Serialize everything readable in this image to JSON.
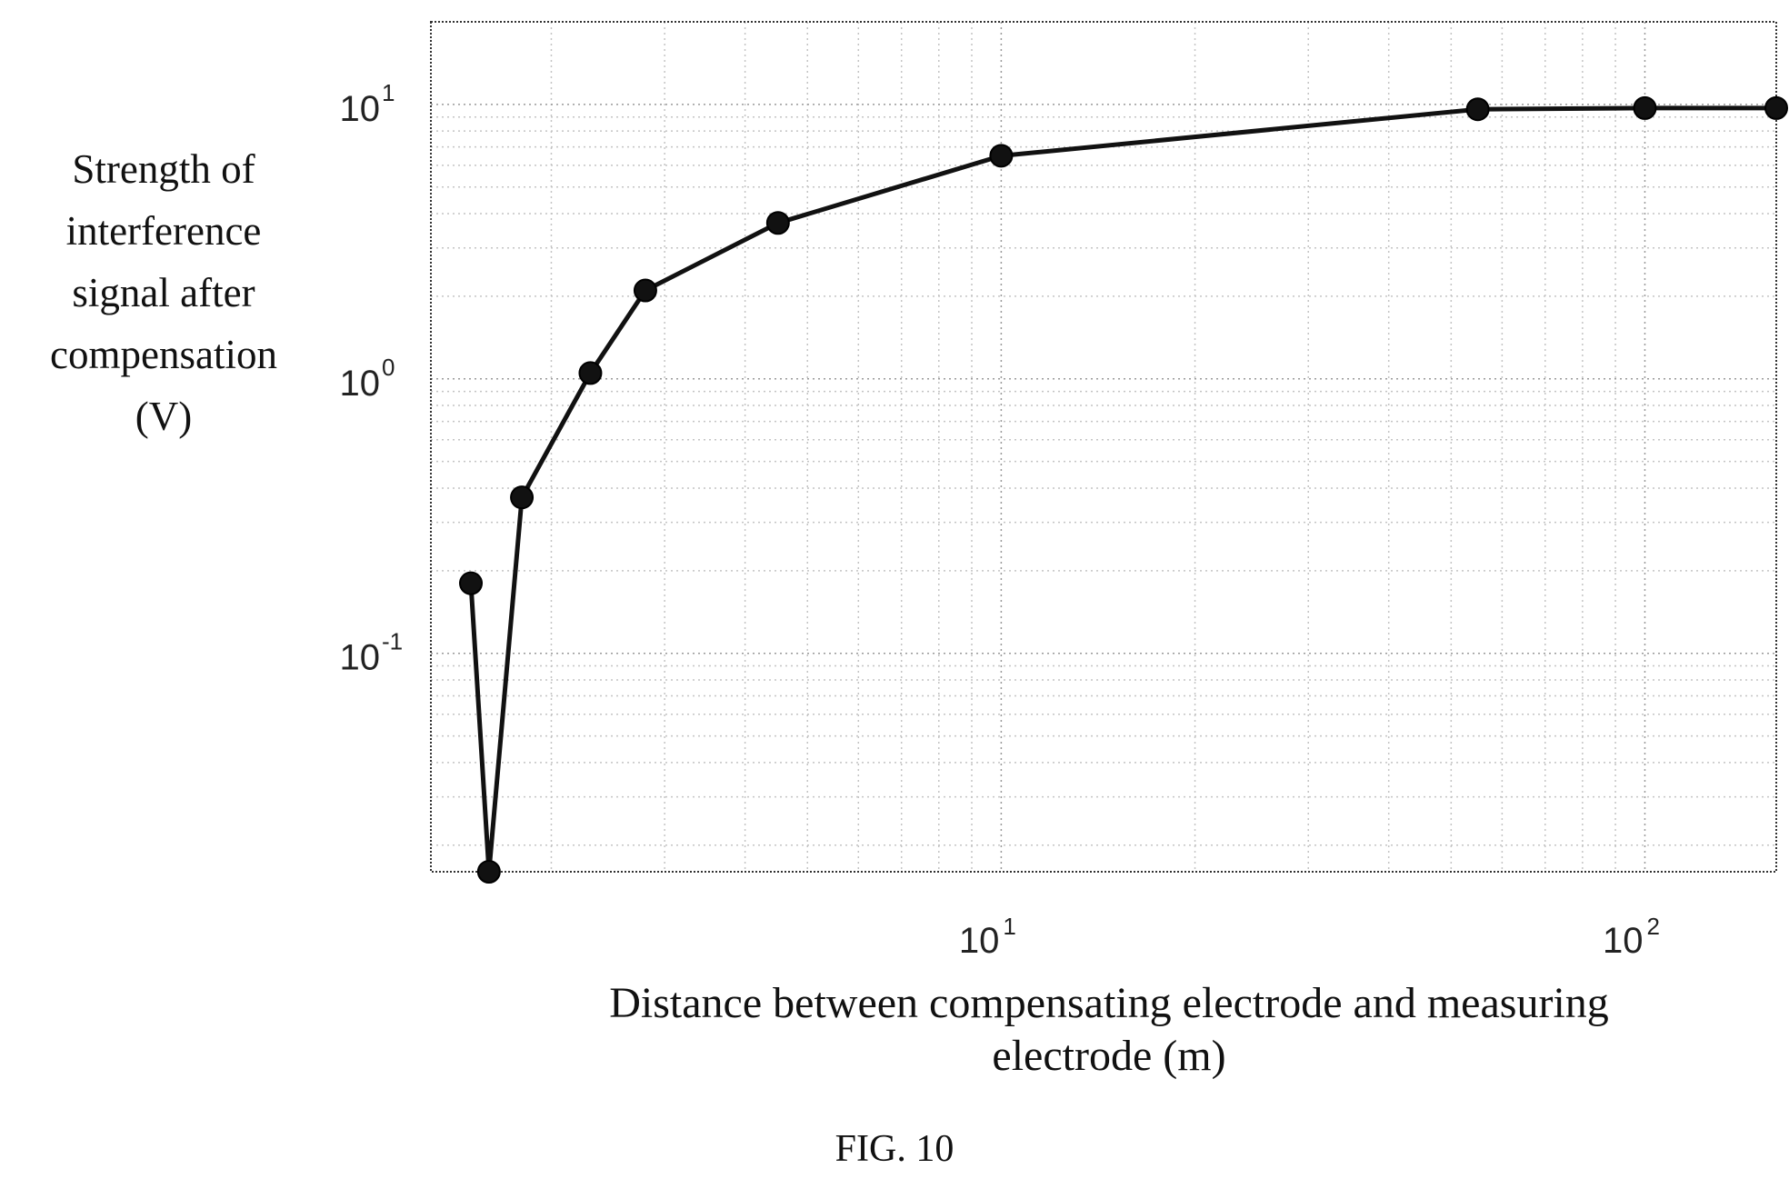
{
  "chart_data": {
    "type": "line",
    "xlabel_lines": [
      "Distance between compensating electrode and measuring",
      "electrode (m)"
    ],
    "ylabel_lines": [
      "Strength of",
      "interference",
      "signal after",
      "compensation",
      "(V)"
    ],
    "xscale": "log",
    "yscale": "log",
    "xlim": [
      1.3,
      160
    ],
    "ylim": [
      0.016,
      20
    ],
    "grid": true,
    "x_ticks": [
      {
        "value": 10,
        "base": "10",
        "exp": "1"
      },
      {
        "value": 100,
        "base": "10",
        "exp": "2"
      }
    ],
    "y_ticks": [
      {
        "value": 0.1,
        "base": "10",
        "exp": "-1"
      },
      {
        "value": 1,
        "base": "10",
        "exp": "0"
      },
      {
        "value": 10,
        "base": "10",
        "exp": "1"
      }
    ],
    "series": [
      {
        "x": [
          1.5,
          1.6,
          1.8,
          2.3,
          2.8,
          4.5,
          10,
          55,
          100,
          160
        ],
        "y": [
          0.18,
          0.016,
          0.37,
          1.05,
          2.1,
          3.7,
          6.5,
          9.6,
          9.7,
          9.7
        ],
        "marker": "circle",
        "color": "#111111"
      }
    ]
  },
  "caption": "FIG. 10"
}
